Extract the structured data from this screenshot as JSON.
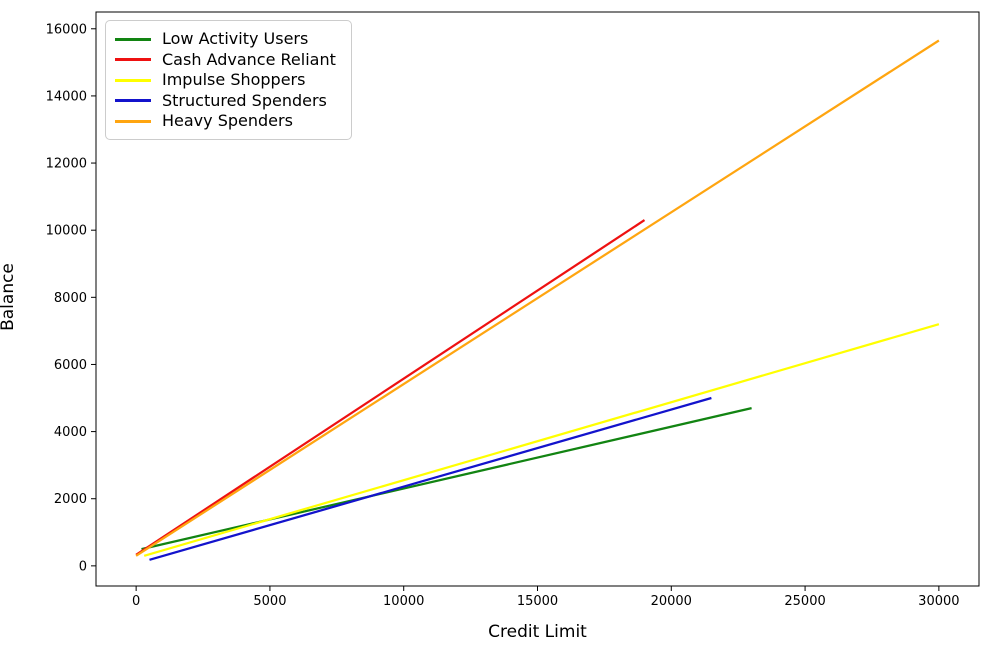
{
  "figure": {
    "background": "#ffffff",
    "spine_color": "#000000",
    "tick_color": "#000000"
  },
  "chart_data": {
    "type": "line",
    "title": "",
    "xlabel": "Credit Limit",
    "ylabel": "Balance",
    "xlim": [
      -1500,
      31500
    ],
    "ylim": [
      -600,
      16500
    ],
    "x_ticks": [
      0,
      5000,
      10000,
      15000,
      20000,
      25000,
      30000
    ],
    "y_ticks": [
      0,
      2000,
      4000,
      6000,
      8000,
      10000,
      12000,
      14000,
      16000
    ],
    "grid": false,
    "legend_position": "upper-left",
    "line_width": 2.25,
    "series": [
      {
        "name": "Low Activity Users",
        "color": "#128412",
        "points": [
          [
            200,
            500
          ],
          [
            23000,
            4700
          ]
        ]
      },
      {
        "name": "Cash Advance Reliant",
        "color": "#ee1111",
        "points": [
          [
            0,
            330
          ],
          [
            19000,
            10300
          ]
        ]
      },
      {
        "name": "Impulse Shoppers",
        "color": "#ffff00",
        "points": [
          [
            300,
            300
          ],
          [
            30000,
            7200
          ]
        ]
      },
      {
        "name": "Structured Spenders",
        "color": "#1313cc",
        "points": [
          [
            500,
            180
          ],
          [
            21500,
            5000
          ]
        ]
      },
      {
        "name": "Heavy Spenders",
        "color": "#ffa510",
        "points": [
          [
            0,
            300
          ],
          [
            30000,
            15650
          ]
        ]
      }
    ]
  }
}
